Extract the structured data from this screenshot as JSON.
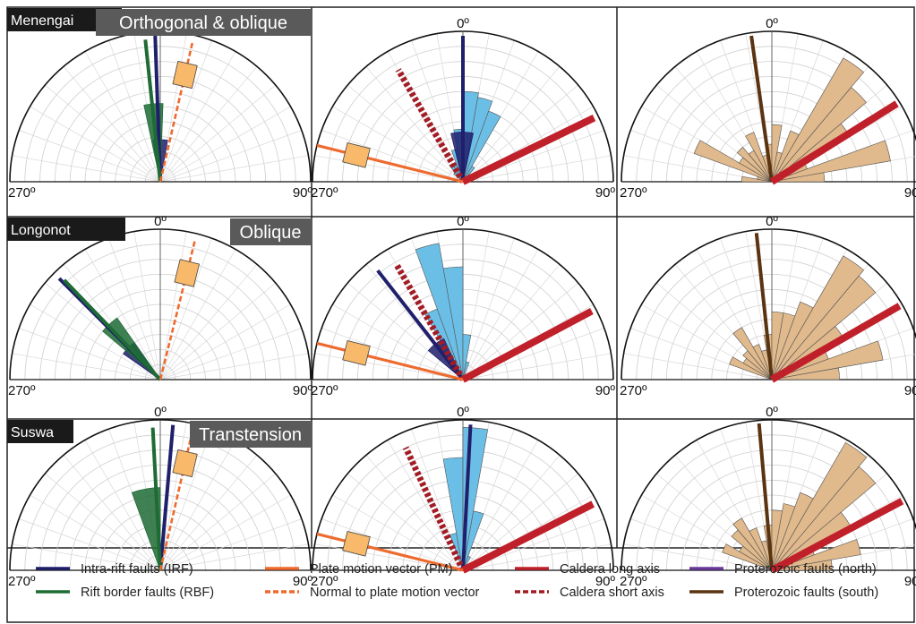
{
  "colors": {
    "irf": "#1f1f6b",
    "rbf": "#1e6b35",
    "pm": "#ee6a2e",
    "normal_pm": "#ee6a2e",
    "caldera_long": "#c0202a",
    "caldera_short": "#a31c25",
    "prot_north": "#6a3a9a",
    "prot_south": "#5a3310",
    "tan_rose": "#e0b98c",
    "blue_rose": "#6bbfe6",
    "orange_box": "#f8b96a",
    "label_bg": "#1a1a1a",
    "regime_bg": "#5a5a5a"
  },
  "rows": [
    {
      "volcano": "Menengai",
      "regime": "Orthogonal & oblique"
    },
    {
      "volcano": "Longonot",
      "regime": "Oblique"
    },
    {
      "volcano": "Suswa",
      "regime": "Transtension"
    }
  ],
  "axis_labels": {
    "north": "0º",
    "west": "270º",
    "east": "90º"
  },
  "legend": [
    {
      "label": "Intra-rift faults (IRF)",
      "style": "solid",
      "color_key": "irf"
    },
    {
      "label": "Rift border faults (RBF)",
      "style": "solid",
      "color_key": "rbf"
    },
    {
      "label": "Plate motion vector (PM)",
      "style": "solid",
      "color_key": "pm"
    },
    {
      "label": "Normal to plate motion vector",
      "style": "dashed",
      "color_key": "normal_pm"
    },
    {
      "label": "Caldera long axis",
      "style": "solid",
      "color_key": "caldera_long"
    },
    {
      "label": "Caldera short axis",
      "style": "dashed",
      "color_key": "caldera_short"
    },
    {
      "label": "Proterozoic faults (north)",
      "style": "solid",
      "color_key": "prot_north"
    },
    {
      "label": "Proterozoic faults (south)",
      "style": "solid",
      "color_key": "prot_south"
    }
  ],
  "chart_data": [
    {
      "type": "rose",
      "row": 0,
      "col": 0,
      "lines": [
        {
          "kind": "irf",
          "azimuth": 358,
          "length": 0.97
        },
        {
          "kind": "rbf",
          "azimuth": 354,
          "length": 0.95
        },
        {
          "kind": "normal_pm",
          "azimuth": 13,
          "length": 0.95
        }
      ],
      "sectors": [
        {
          "kind": "irf",
          "from": 350,
          "to": 10,
          "radius": 0.28
        },
        {
          "kind": "rbf",
          "from": 348,
          "to": 2,
          "radius": 0.52
        }
      ],
      "boxes": [
        {
          "kind": "pm_box",
          "azimuth": 13,
          "radius": 0.73
        }
      ]
    },
    {
      "type": "rose",
      "row": 0,
      "col": 1,
      "lines": [
        {
          "kind": "irf",
          "azimuth": 0,
          "length": 0.97
        },
        {
          "kind": "caldera_short",
          "azimuth": 330,
          "length": 0.86
        },
        {
          "kind": "caldera_long",
          "azimuth": 64,
          "length": 0.97
        },
        {
          "kind": "pm",
          "azimuth": 284,
          "length": 1.0
        }
      ],
      "sectors": [
        {
          "kind": "irf",
          "from": 346,
          "to": 12,
          "radius": 0.33
        }
      ],
      "rose": [
        {
          "az": 315,
          "r": 0.08
        },
        {
          "az": 325,
          "r": 0.14
        },
        {
          "az": 335,
          "r": 0.12
        },
        {
          "az": 345,
          "r": 0.22
        },
        {
          "az": 355,
          "r": 0.35
        },
        {
          "az": 5,
          "r": 0.6
        },
        {
          "az": 15,
          "r": 0.57
        },
        {
          "az": 25,
          "r": 0.5
        },
        {
          "az": 35,
          "r": 0.12
        }
      ],
      "boxes": [
        {
          "kind": "pm_box",
          "azimuth": 284,
          "radius": 0.73
        }
      ]
    },
    {
      "type": "rose",
      "row": 0,
      "col": 2,
      "lines": [
        {
          "kind": "prot_south",
          "azimuth": 352,
          "length": 0.98
        },
        {
          "kind": "caldera_long",
          "azimuth": 58,
          "length": 0.98
        }
      ],
      "rose": [
        {
          "az": 275,
          "r": 0.2
        },
        {
          "az": 285,
          "r": 0.1
        },
        {
          "az": 295,
          "r": 0.55
        },
        {
          "az": 305,
          "r": 0.25
        },
        {
          "az": 315,
          "r": 0.3
        },
        {
          "az": 325,
          "r": 0.24
        },
        {
          "az": 335,
          "r": 0.35
        },
        {
          "az": 345,
          "r": 0.18
        },
        {
          "az": 355,
          "r": 0.25
        },
        {
          "az": 5,
          "r": 0.38
        },
        {
          "az": 15,
          "r": 0.2
        },
        {
          "az": 25,
          "r": 0.36
        },
        {
          "az": 35,
          "r": 0.95
        },
        {
          "az": 45,
          "r": 0.82
        },
        {
          "az": 55,
          "r": 0.6
        },
        {
          "az": 65,
          "r": 0.25
        },
        {
          "az": 75,
          "r": 0.8
        },
        {
          "az": 85,
          "r": 0.35
        }
      ]
    },
    {
      "type": "rose",
      "row": 1,
      "col": 0,
      "lines": [
        {
          "kind": "irf",
          "azimuth": 315,
          "length": 0.95
        },
        {
          "kind": "rbf",
          "azimuth": 316,
          "length": 0.92
        },
        {
          "kind": "normal_pm",
          "azimuth": 14,
          "length": 0.95
        }
      ],
      "sectors": [
        {
          "kind": "irf",
          "from": 305,
          "to": 325,
          "radius": 0.3
        },
        {
          "kind": "rbf",
          "from": 310,
          "to": 325,
          "radius": 0.5
        }
      ],
      "boxes": [
        {
          "kind": "pm_box",
          "azimuth": 14,
          "radius": 0.73
        }
      ]
    },
    {
      "type": "rose",
      "row": 1,
      "col": 1,
      "lines": [
        {
          "kind": "irf",
          "azimuth": 322,
          "length": 0.92
        },
        {
          "kind": "caldera_short",
          "azimuth": 330,
          "length": 0.88
        },
        {
          "kind": "caldera_long",
          "azimuth": 62,
          "length": 0.97
        },
        {
          "kind": "pm",
          "azimuth": 284,
          "length": 1.0
        }
      ],
      "sectors": [
        {
          "kind": "irf",
          "from": 310,
          "to": 335,
          "radius": 0.3
        }
      ],
      "rose": [
        {
          "az": 315,
          "r": 0.12
        },
        {
          "az": 325,
          "r": 0.28
        },
        {
          "az": 335,
          "r": 0.5
        },
        {
          "az": 345,
          "r": 0.92
        },
        {
          "az": 355,
          "r": 0.75
        },
        {
          "az": 5,
          "r": 0.3
        },
        {
          "az": 15,
          "r": 0.12
        }
      ],
      "boxes": [
        {
          "kind": "pm_box",
          "azimuth": 284,
          "radius": 0.73
        }
      ]
    },
    {
      "type": "rose",
      "row": 1,
      "col": 2,
      "lines": [
        {
          "kind": "prot_south",
          "azimuth": 354,
          "length": 0.98
        },
        {
          "kind": "caldera_long",
          "azimuth": 60,
          "length": 0.98
        }
      ],
      "rose": [
        {
          "az": 295,
          "r": 0.3
        },
        {
          "az": 305,
          "r": 0.22
        },
        {
          "az": 315,
          "r": 0.25
        },
        {
          "az": 325,
          "r": 0.4
        },
        {
          "az": 335,
          "r": 0.25
        },
        {
          "az": 345,
          "r": 0.2
        },
        {
          "az": 355,
          "r": 0.3
        },
        {
          "az": 5,
          "r": 0.45
        },
        {
          "az": 15,
          "r": 0.45
        },
        {
          "az": 25,
          "r": 0.55
        },
        {
          "az": 35,
          "r": 0.95
        },
        {
          "az": 45,
          "r": 0.9
        },
        {
          "az": 55,
          "r": 0.55
        },
        {
          "az": 65,
          "r": 0.4
        },
        {
          "az": 75,
          "r": 0.75
        },
        {
          "az": 85,
          "r": 0.45
        }
      ]
    },
    {
      "type": "rose",
      "row": 2,
      "col": 0,
      "lines": [
        {
          "kind": "irf",
          "azimuth": 5,
          "length": 0.97
        },
        {
          "kind": "rbf",
          "azimuth": 357,
          "length": 0.95
        },
        {
          "kind": "normal_pm",
          "azimuth": 13,
          "length": 0.95
        }
      ],
      "sectors": [
        {
          "kind": "rbf",
          "from": 340,
          "to": 360,
          "radius": 0.55
        }
      ],
      "boxes": [
        {
          "kind": "pm_box",
          "azimuth": 13,
          "radius": 0.73
        }
      ]
    },
    {
      "type": "rose",
      "row": 2,
      "col": 1,
      "lines": [
        {
          "kind": "irf",
          "azimuth": 3,
          "length": 0.97
        },
        {
          "kind": "caldera_short",
          "azimuth": 335,
          "length": 0.9
        },
        {
          "kind": "caldera_long",
          "azimuth": 63,
          "length": 0.97
        },
        {
          "kind": "pm",
          "azimuth": 284,
          "length": 1.0
        }
      ],
      "rose": [
        {
          "az": 345,
          "r": 0.25
        },
        {
          "az": 355,
          "r": 0.75
        },
        {
          "az": 5,
          "r": 0.95
        },
        {
          "az": 15,
          "r": 0.4
        },
        {
          "az": 25,
          "r": 0.1
        }
      ],
      "boxes": [
        {
          "kind": "pm_box",
          "azimuth": 284,
          "radius": 0.73
        }
      ]
    },
    {
      "type": "rose",
      "row": 2,
      "col": 2,
      "lines": [
        {
          "kind": "prot_south",
          "azimuth": 355,
          "length": 0.98
        },
        {
          "kind": "caldera_long",
          "azimuth": 62,
          "length": 0.98
        }
      ],
      "rose": [
        {
          "az": 295,
          "r": 0.35
        },
        {
          "az": 305,
          "r": 0.25
        },
        {
          "az": 315,
          "r": 0.35
        },
        {
          "az": 325,
          "r": 0.4
        },
        {
          "az": 335,
          "r": 0.3
        },
        {
          "az": 345,
          "r": 0.2
        },
        {
          "az": 355,
          "r": 0.3
        },
        {
          "az": 5,
          "r": 0.4
        },
        {
          "az": 15,
          "r": 0.45
        },
        {
          "az": 25,
          "r": 0.55
        },
        {
          "az": 35,
          "r": 0.98
        },
        {
          "az": 45,
          "r": 0.9
        },
        {
          "az": 55,
          "r": 0.6
        },
        {
          "az": 65,
          "r": 0.3
        },
        {
          "az": 75,
          "r": 0.6
        },
        {
          "az": 85,
          "r": 0.4
        }
      ]
    }
  ]
}
